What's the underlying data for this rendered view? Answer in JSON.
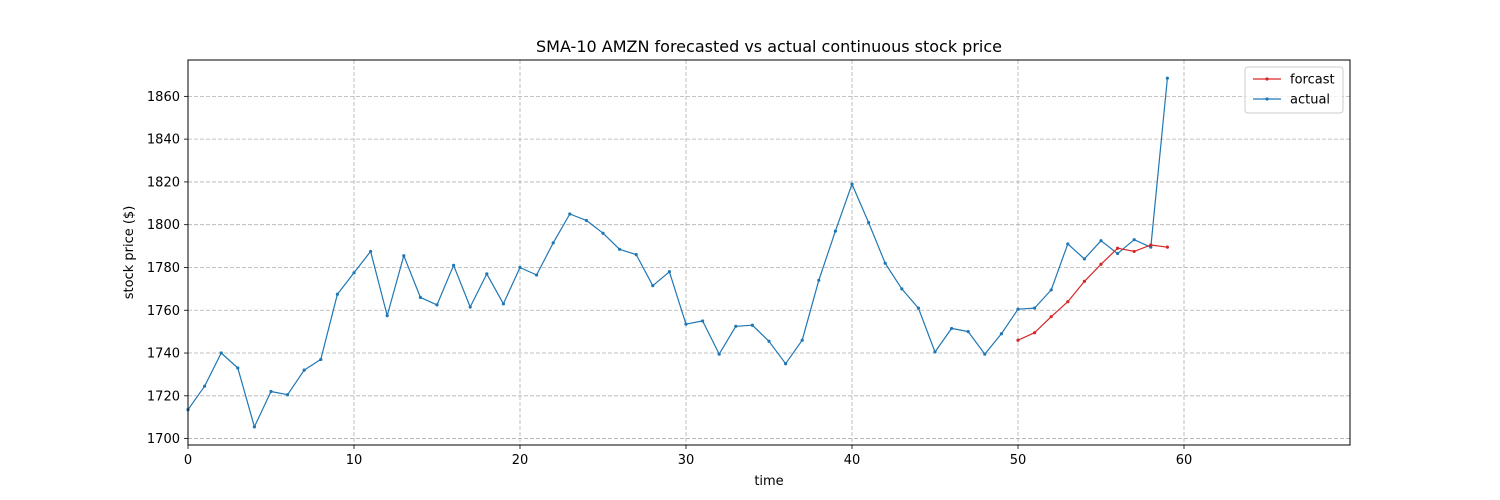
{
  "chart_data": {
    "type": "line",
    "title": "SMA-10 AMZN forecasted vs actual continuous stock price",
    "xlabel": "time",
    "ylabel": "stock price ($)",
    "xlim": [
      0,
      70
    ],
    "ylim": [
      1697,
      1877
    ],
    "xticks": [
      0,
      10,
      20,
      30,
      40,
      50,
      60
    ],
    "yticks": [
      1700,
      1720,
      1740,
      1760,
      1780,
      1800,
      1820,
      1840,
      1860
    ],
    "grid": true,
    "legend_position": "top-right",
    "series": [
      {
        "name": "forcast",
        "color": "#d62728",
        "x": [
          50,
          51,
          52,
          53,
          54,
          55,
          56,
          57,
          58,
          59
        ],
        "values": [
          1746,
          1749.5,
          1757,
          1764,
          1773.5,
          1781.5,
          1789,
          1787.5,
          1790.5,
          1789.5
        ]
      },
      {
        "name": "actual",
        "color": "#1f77b4",
        "x": [
          0,
          1,
          2,
          3,
          4,
          5,
          6,
          7,
          8,
          9,
          10,
          11,
          12,
          13,
          14,
          15,
          16,
          17,
          18,
          19,
          20,
          21,
          22,
          23,
          24,
          25,
          26,
          27,
          28,
          29,
          30,
          31,
          32,
          33,
          34,
          35,
          36,
          37,
          38,
          39,
          40,
          41,
          42,
          43,
          44,
          45,
          46,
          47,
          48,
          49,
          50,
          51,
          52,
          53,
          54,
          55,
          56,
          57,
          58,
          59
        ],
        "values": [
          1713.5,
          1724.5,
          1740,
          1733,
          1705.5,
          1722,
          1720.5,
          1732,
          1737,
          1767.5,
          1777.5,
          1787.5,
          1757.5,
          1785.5,
          1766,
          1762.5,
          1781,
          1761.5,
          1777,
          1763,
          1780,
          1776.5,
          1791.5,
          1805,
          1802,
          1796,
          1788.5,
          1786,
          1771.5,
          1778,
          1753.5,
          1755,
          1739.5,
          1752.5,
          1753,
          1745.5,
          1735,
          1746,
          1774,
          1797,
          1819,
          1801,
          1782,
          1770,
          1761,
          1740.5,
          1751.5,
          1750,
          1739.5,
          1749,
          1760.5,
          1761,
          1769.5,
          1791,
          1784,
          1792.5,
          1786.5,
          1793,
          1789.5,
          1868.5
        ]
      }
    ]
  }
}
